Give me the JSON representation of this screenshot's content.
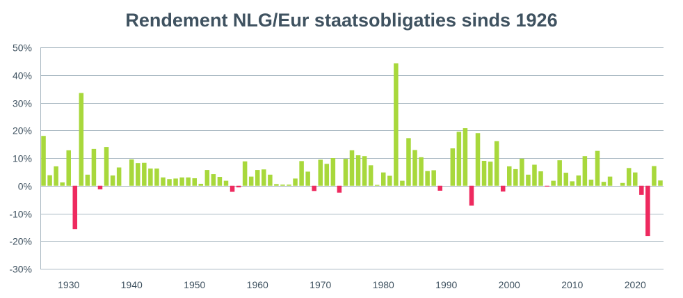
{
  "chart_data": {
    "type": "bar",
    "title": "Rendement NLG/Eur staatsobligaties sinds 1926",
    "xlabel": "",
    "ylabel": "",
    "ylim": [
      -30,
      50
    ],
    "y_ticks": [
      "50%",
      "40%",
      "30%",
      "20%",
      "10%",
      "0%",
      "-10%",
      "-20%",
      "-30%"
    ],
    "y_tick_values": [
      50,
      40,
      30,
      20,
      10,
      0,
      -10,
      -20,
      -30
    ],
    "x_ticks": [
      "1930",
      "1940",
      "1950",
      "1960",
      "1970",
      "1980",
      "1990",
      "2000",
      "2010",
      "2020"
    ],
    "x_tick_values": [
      1930,
      1940,
      1950,
      1960,
      1970,
      1980,
      1990,
      2000,
      2010,
      2020
    ],
    "x_range": [
      1926,
      2024
    ],
    "grid": "horizontal",
    "legend": "none",
    "colors": {
      "positive": "#a8d83c",
      "negative": "#ee2a5f",
      "grid": "#a9b8c2",
      "text": "#3f5260"
    },
    "categories": [
      1926,
      1927,
      1928,
      1929,
      1930,
      1931,
      1932,
      1933,
      1934,
      1935,
      1936,
      1937,
      1938,
      1939,
      1940,
      1941,
      1942,
      1943,
      1944,
      1945,
      1946,
      1947,
      1948,
      1949,
      1950,
      1951,
      1952,
      1953,
      1954,
      1955,
      1956,
      1957,
      1958,
      1959,
      1960,
      1961,
      1962,
      1963,
      1964,
      1965,
      1966,
      1967,
      1968,
      1969,
      1970,
      1971,
      1972,
      1973,
      1974,
      1975,
      1976,
      1977,
      1978,
      1979,
      1980,
      1981,
      1982,
      1983,
      1984,
      1985,
      1986,
      1987,
      1988,
      1989,
      1990,
      1991,
      1992,
      1993,
      1994,
      1995,
      1996,
      1997,
      1998,
      1999,
      2000,
      2001,
      2002,
      2003,
      2004,
      2005,
      2006,
      2007,
      2008,
      2009,
      2010,
      2011,
      2012,
      2013,
      2014,
      2015,
      2016,
      2017,
      2018,
      2019,
      2020,
      2021,
      2022,
      2023,
      2024
    ],
    "values": [
      18,
      3.8,
      7,
      1.2,
      12.8,
      -15.7,
      33.5,
      4,
      13.3,
      -1.3,
      14,
      3.7,
      6.6,
      0,
      9.5,
      8.2,
      8.3,
      6.2,
      6.2,
      3,
      2.4,
      2.6,
      3,
      3,
      2.7,
      0.7,
      5.7,
      4.2,
      3.2,
      1.8,
      -2.2,
      -0.6,
      8.8,
      3.3,
      5.7,
      5.9,
      4,
      0.6,
      0.4,
      0.4,
      2.6,
      8.9,
      5.1,
      -1.9,
      9.4,
      7.9,
      10,
      -2.5,
      9.7,
      12.8,
      11,
      10.7,
      7.4,
      0.3,
      4.8,
      3.6,
      44.2,
      1.8,
      17.2,
      12.9,
      10.3,
      5.3,
      5.6,
      -1.8,
      0,
      13.5,
      19.5,
      20.8,
      -7.2,
      19,
      9,
      8.7,
      16.1,
      -2.1,
      7,
      6,
      9.8,
      4,
      7.6,
      5.2,
      -0.3,
      1.8,
      9.2,
      4.7,
      1.6,
      3.7,
      10.7,
      2.2,
      12.6,
      1.4,
      3.3,
      0,
      1,
      6.4,
      4.8,
      -3.3,
      -18.2,
      7.1,
      1.9
    ]
  }
}
